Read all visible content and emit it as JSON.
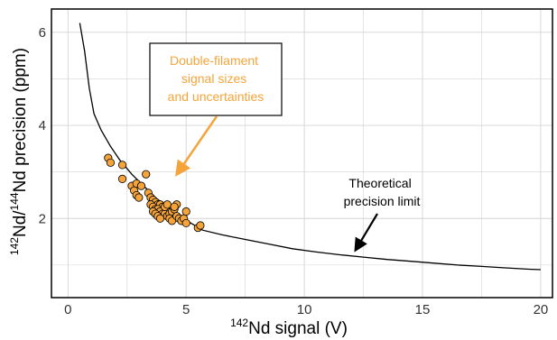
{
  "chart_data": {
    "type": "scatter",
    "xlabel": {
      "sup": "142",
      "text": "Nd signal (V)"
    },
    "ylabel": {
      "sup1": "142",
      "mid": "Nd/",
      "sup2": "144",
      "text": "Nd precision (ppm)"
    },
    "xlim": [
      -0.7,
      20.5
    ],
    "ylim": [
      0.3,
      6.5
    ],
    "xticks": [
      0,
      5,
      10,
      15,
      20
    ],
    "yticks": [
      2,
      4,
      6
    ],
    "grid": true,
    "series": [
      {
        "kind": "line",
        "points": [
          [
            0.5,
            6.2
          ],
          [
            0.7,
            5.6
          ],
          [
            0.9,
            4.8
          ],
          [
            1.1,
            4.25
          ],
          [
            1.4,
            3.9
          ],
          [
            1.8,
            3.55
          ],
          [
            2.2,
            3.25
          ],
          [
            2.7,
            2.95
          ],
          [
            3.2,
            2.7
          ],
          [
            3.7,
            2.45
          ],
          [
            4.2,
            2.25
          ],
          [
            4.7,
            2.05
          ],
          [
            5.2,
            1.9
          ],
          [
            5.7,
            1.75
          ],
          [
            6.5,
            1.65
          ],
          [
            7.5,
            1.55
          ],
          [
            8.5,
            1.45
          ],
          [
            9.5,
            1.35
          ],
          [
            10.5,
            1.28
          ],
          [
            11.5,
            1.22
          ],
          [
            12.5,
            1.17
          ],
          [
            13.5,
            1.12
          ],
          [
            14.5,
            1.08
          ],
          [
            15.5,
            1.04
          ],
          [
            16.5,
            1.0
          ],
          [
            17.5,
            0.97
          ],
          [
            18.5,
            0.94
          ],
          [
            19.5,
            0.91
          ],
          [
            20.0,
            0.9
          ]
        ]
      },
      {
        "kind": "points",
        "color": "#f4a43a",
        "points": [
          [
            1.7,
            3.3
          ],
          [
            1.8,
            3.2
          ],
          [
            2.3,
            3.15
          ],
          [
            3.3,
            2.95
          ],
          [
            2.3,
            2.85
          ],
          [
            2.7,
            2.7
          ],
          [
            2.9,
            2.75
          ],
          [
            3.1,
            2.7
          ],
          [
            2.8,
            2.6
          ],
          [
            2.9,
            2.5
          ],
          [
            3.0,
            2.45
          ],
          [
            3.4,
            2.55
          ],
          [
            3.5,
            2.45
          ],
          [
            3.6,
            2.4
          ],
          [
            3.7,
            2.35
          ],
          [
            3.8,
            2.3
          ],
          [
            3.9,
            2.3
          ],
          [
            4.0,
            2.25
          ],
          [
            3.5,
            2.3
          ],
          [
            3.6,
            2.25
          ],
          [
            3.7,
            2.2
          ],
          [
            3.8,
            2.2
          ],
          [
            3.9,
            2.15
          ],
          [
            4.0,
            2.1
          ],
          [
            4.1,
            2.1
          ],
          [
            4.2,
            2.05
          ],
          [
            4.3,
            2.1
          ],
          [
            4.4,
            2.15
          ],
          [
            4.5,
            2.2
          ],
          [
            4.6,
            2.3
          ],
          [
            4.1,
            2.25
          ],
          [
            4.2,
            2.3
          ],
          [
            3.6,
            2.15
          ],
          [
            3.7,
            2.1
          ],
          [
            3.8,
            2.05
          ],
          [
            3.9,
            2.0
          ],
          [
            4.3,
            2.0
          ],
          [
            4.4,
            1.95
          ],
          [
            4.6,
            2.05
          ],
          [
            4.7,
            2.0
          ],
          [
            4.8,
            1.95
          ],
          [
            4.9,
            2.0
          ],
          [
            5.0,
            1.9
          ],
          [
            5.0,
            2.15
          ],
          [
            4.5,
            2.25
          ],
          [
            5.5,
            1.8
          ],
          [
            5.6,
            1.85
          ]
        ]
      }
    ],
    "annotations": [
      {
        "lines": [
          "Double-filament",
          "signal sizes",
          "and uncertainties"
        ],
        "color": "#f4a43a"
      },
      {
        "lines": [
          "Theoretical",
          "precision limit"
        ],
        "color": "#000000"
      }
    ]
  }
}
